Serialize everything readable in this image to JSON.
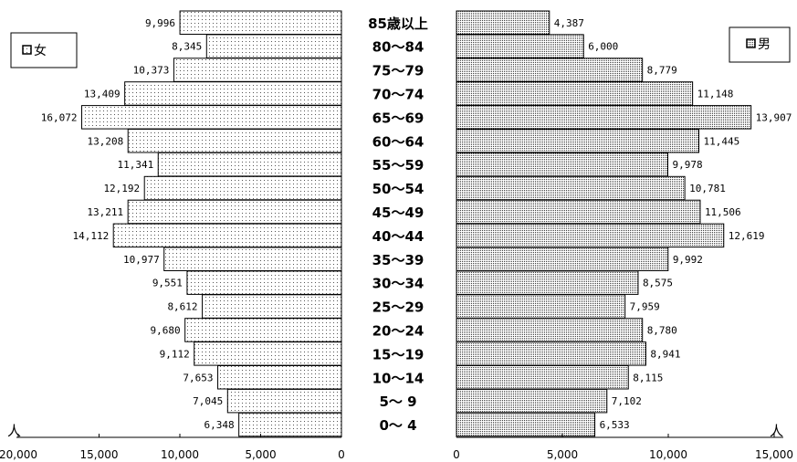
{
  "chart_data": {
    "type": "bar",
    "orientation": "horizontal",
    "layout": "population-pyramid",
    "categories": [
      "85歳以上",
      "80～84",
      "75～79",
      "70～74",
      "65～69",
      "60～64",
      "55～59",
      "50～54",
      "45～49",
      "40～44",
      "35～39",
      "30～34",
      "25～29",
      "20～24",
      "15～19",
      "10～14",
      "5～ 9",
      "0～ 4"
    ],
    "series": [
      {
        "name": "女",
        "side": "left",
        "fill": "light-dotted",
        "values": [
          9996,
          8345,
          10373,
          13409,
          16072,
          13208,
          11341,
          12192,
          13211,
          14112,
          10977,
          9551,
          8612,
          9680,
          9112,
          7653,
          7045,
          6348
        ],
        "value_labels": [
          "9,996",
          "8,345",
          "10,373",
          "13,409",
          "16,072",
          "13,208",
          "11,341",
          "12,192",
          "13,211",
          "14,112",
          "10,977",
          "9,551",
          "8,612",
          "9,680",
          "9,112",
          "7,653",
          "7,045",
          "6,348"
        ]
      },
      {
        "name": "男",
        "side": "right",
        "fill": "dense-dotted",
        "values": [
          4387,
          6000,
          8779,
          11148,
          13907,
          11445,
          9978,
          10781,
          11506,
          12619,
          9992,
          8575,
          7959,
          8780,
          8941,
          8115,
          7102,
          6533
        ],
        "value_labels": [
          "4,387",
          "6,000",
          "8,779",
          "11,148",
          "13,907",
          "11,445",
          "9,978",
          "10,781",
          "11,506",
          "12,619",
          "9,992",
          "8,575",
          "7,959",
          "8,780",
          "8,941",
          "8,115",
          "7,102",
          "6,533"
        ]
      }
    ],
    "left_axis": {
      "range": [
        20000,
        0
      ],
      "ticks": [
        20000,
        15000,
        10000,
        5000,
        0
      ],
      "tick_labels": [
        "20,000",
        "15,000",
        "10,000",
        "5,000",
        "0"
      ],
      "unit_label": "人"
    },
    "right_axis": {
      "range": [
        0,
        15000
      ],
      "ticks": [
        0,
        5000,
        10000,
        15000
      ],
      "tick_labels": [
        "0",
        "5,000",
        "10,000",
        "15,000"
      ],
      "unit_label": "人"
    },
    "legend": [
      {
        "label": "女",
        "position": "top-left"
      },
      {
        "label": "男",
        "position": "top-right"
      }
    ],
    "grid": false,
    "title": ""
  }
}
